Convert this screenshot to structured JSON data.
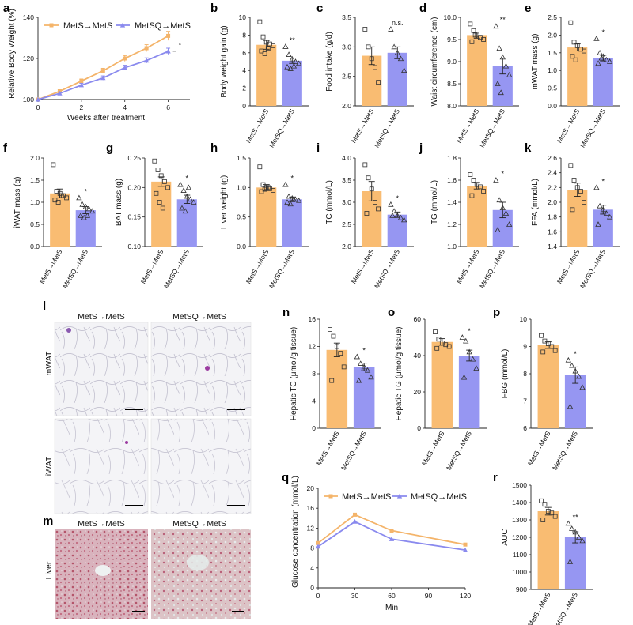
{
  "colors": {
    "orange": "#F9BC72",
    "orange_line": "#F4B46A",
    "purple": "#9696F2",
    "purple_line": "#8A8AEE"
  },
  "panels": {
    "a": "a",
    "b": "b",
    "c": "c",
    "d": "d",
    "e": "e",
    "f": "f",
    "g": "g",
    "h": "h",
    "i": "i",
    "j": "j",
    "k": "k",
    "l": "l",
    "m": "m",
    "n": "n",
    "o": "o",
    "p": "p",
    "q": "q",
    "r": "r"
  },
  "groups": [
    "MetS→MetS",
    "MetSQ→MetS"
  ],
  "histology": {
    "l_titles": [
      "MetS→MetS",
      "MetSQ→MetS"
    ],
    "l_rows": [
      "mWAT",
      "iWAT"
    ],
    "m_titles": [
      "MetS→MetS",
      "MetSQ→MetS"
    ],
    "m_row": "Liver"
  },
  "chart_data": [
    {
      "id": "a",
      "type": "line",
      "xlabel": "Weeks after treatment",
      "ylabel": "Relative Body Weight (%)",
      "xlim": [
        0,
        7
      ],
      "ylim": [
        100,
        140
      ],
      "xticks": [
        0,
        2,
        4,
        6
      ],
      "yticks": [
        100,
        120,
        140
      ],
      "x": [
        0,
        1,
        2,
        3,
        4,
        5,
        6
      ],
      "series": [
        {
          "name": "MetS→MetS",
          "values": [
            100,
            104,
            109,
            114,
            120,
            125,
            131
          ],
          "err": [
            0,
            0.8,
            1,
            1.2,
            1.4,
            1.7,
            2.2
          ]
        },
        {
          "name": "MetSQ→MetS",
          "values": [
            100,
            103,
            107,
            110.5,
            115.5,
            119,
            123.5
          ],
          "err": [
            0,
            0.7,
            0.9,
            1,
            1.2,
            1.3,
            1.5
          ]
        }
      ],
      "annotation": "*",
      "legend": "top"
    },
    {
      "id": "b",
      "type": "bar",
      "ylabel": "Body weight gain (g)",
      "ylim": [
        0,
        10
      ],
      "yticks": [
        0,
        2,
        4,
        6,
        8,
        10
      ],
      "values": [
        6.9,
        5.1
      ],
      "err": [
        0.5,
        0.3
      ],
      "points": [
        [
          9.5,
          7.8,
          7.2,
          7.0,
          6.8,
          6.2,
          5.9,
          6.5
        ],
        [
          6.7,
          5.8,
          5.3,
          5.0,
          4.8,
          4.4,
          4.2,
          4.5
        ]
      ],
      "sig": "**"
    },
    {
      "id": "c",
      "type": "bar",
      "ylabel": "Food intake (g/d)",
      "ylim": [
        2.0,
        3.5
      ],
      "yticks": [
        2.0,
        2.5,
        3.0,
        3.5
      ],
      "values": [
        2.85,
        2.9
      ],
      "err": [
        0.15,
        0.1
      ],
      "points": [
        [
          3.3,
          3.0,
          2.8,
          2.65,
          2.4
        ],
        [
          3.3,
          3.0,
          2.9,
          2.8,
          2.6
        ]
      ],
      "sig": "n.s."
    },
    {
      "id": "d",
      "type": "bar",
      "ylabel": "Waist circumference (cm)",
      "ylim": [
        8.0,
        10.0
      ],
      "yticks": [
        8.0,
        8.5,
        9.0,
        9.5,
        10.0
      ],
      "values": [
        9.6,
        8.9
      ],
      "err": [
        0.07,
        0.18
      ],
      "points": [
        [
          9.85,
          9.7,
          9.6,
          9.55,
          9.5,
          9.45,
          9.6
        ],
        [
          9.8,
          9.3,
          9.1,
          8.9,
          8.7,
          8.5,
          8.3
        ]
      ],
      "sig": "**"
    },
    {
      "id": "e",
      "type": "bar",
      "ylabel": "mWAT mass (g)",
      "ylim": [
        0.0,
        2.5
      ],
      "yticks": [
        0.0,
        0.5,
        1.0,
        1.5,
        2.0,
        2.5
      ],
      "values": [
        1.65,
        1.35
      ],
      "err": [
        0.1,
        0.08
      ],
      "points": [
        [
          2.35,
          1.8,
          1.7,
          1.6,
          1.55,
          1.4,
          1.3
        ],
        [
          1.9,
          1.5,
          1.4,
          1.3,
          1.25,
          1.2,
          1.35
        ]
      ],
      "sig": "*"
    },
    {
      "id": "f",
      "type": "bar",
      "ylabel": "iWAT mass (g)",
      "ylim": [
        0.0,
        2.0
      ],
      "yticks": [
        0.0,
        0.5,
        1.0,
        1.5,
        2.0
      ],
      "values": [
        1.2,
        0.82
      ],
      "err": [
        0.1,
        0.08
      ],
      "points": [
        [
          1.85,
          1.25,
          1.2,
          1.15,
          1.1,
          1.05,
          1.0,
          1.15
        ],
        [
          1.1,
          0.95,
          0.9,
          0.85,
          0.8,
          0.7,
          0.65,
          0.7
        ]
      ],
      "sig": "*"
    },
    {
      "id": "g",
      "type": "bar",
      "ylabel": "BAT mass (g)",
      "ylim": [
        0.1,
        0.25
      ],
      "yticks": [
        0.1,
        0.15,
        0.2,
        0.25
      ],
      "values": [
        0.21,
        0.18
      ],
      "err": [
        0.008,
        0.007
      ],
      "points": [
        [
          0.245,
          0.23,
          0.22,
          0.21,
          0.2,
          0.19,
          0.175,
          0.165
        ],
        [
          0.205,
          0.195,
          0.185,
          0.18,
          0.175,
          0.165,
          0.16,
          0.2
        ]
      ],
      "sig": "*"
    },
    {
      "id": "h",
      "type": "bar",
      "ylabel": "Liver weight (g)",
      "ylim": [
        0.0,
        1.5
      ],
      "yticks": [
        0.0,
        0.5,
        1.0,
        1.5
      ],
      "values": [
        1.0,
        0.8
      ],
      "err": [
        0.05,
        0.04
      ],
      "points": [
        [
          1.35,
          1.05,
          1.0,
          0.98,
          0.95,
          0.93,
          0.97,
          1.0
        ],
        [
          1.05,
          0.85,
          0.82,
          0.8,
          0.78,
          0.75,
          0.72,
          0.8
        ]
      ],
      "sig": "*"
    },
    {
      "id": "i",
      "type": "bar",
      "ylabel": "TC (mmol/L)",
      "ylim": [
        2.0,
        4.0
      ],
      "yticks": [
        2.0,
        2.5,
        3.0,
        3.5,
        4.0
      ],
      "values": [
        3.25,
        2.72
      ],
      "err": [
        0.22,
        0.06
      ],
      "points": [
        [
          3.85,
          3.55,
          3.3,
          3.0,
          2.85,
          2.75
        ],
        [
          2.95,
          2.8,
          2.7,
          2.65,
          2.6,
          2.7
        ]
      ],
      "sig": "*"
    },
    {
      "id": "j",
      "type": "bar",
      "ylabel": "TG (mmol/L)",
      "ylim": [
        1.0,
        1.8
      ],
      "yticks": [
        1.0,
        1.2,
        1.4,
        1.6,
        1.8
      ],
      "values": [
        1.55,
        1.33
      ],
      "err": [
        0.03,
        0.07
      ],
      "points": [
        [
          1.65,
          1.6,
          1.56,
          1.54,
          1.5,
          1.46
        ],
        [
          1.6,
          1.42,
          1.35,
          1.3,
          1.2,
          1.15
        ]
      ],
      "sig": "*"
    },
    {
      "id": "k",
      "type": "bar",
      "ylabel": "FFA (mmol/L)",
      "ylim": [
        1.4,
        2.6
      ],
      "yticks": [
        1.4,
        1.6,
        1.8,
        2.0,
        2.2,
        2.4,
        2.6
      ],
      "values": [
        2.17,
        1.9
      ],
      "err": [
        0.09,
        0.06
      ],
      "points": [
        [
          2.5,
          2.3,
          2.2,
          2.15,
          2.0,
          1.9
        ],
        [
          2.2,
          1.95,
          1.9,
          1.85,
          1.8,
          1.7
        ]
      ],
      "sig": "*"
    },
    {
      "id": "n",
      "type": "bar",
      "ylabel": "Hepatic TC (μmol/g tissue)",
      "ylim": [
        0,
        16
      ],
      "yticks": [
        0,
        4,
        8,
        12,
        16
      ],
      "values": [
        11.5,
        9.0
      ],
      "err": [
        1.0,
        0.55
      ],
      "points": [
        [
          14.5,
          13.5,
          12.0,
          11.0,
          9.0,
          7.0
        ],
        [
          10.5,
          9.5,
          9.0,
          8.5,
          7.5,
          7.0
        ]
      ],
      "sig": "*"
    },
    {
      "id": "o",
      "type": "bar",
      "ylabel": "Hepatic TG (μmol/g tissue)",
      "ylim": [
        0,
        60
      ],
      "yticks": [
        0,
        20,
        40,
        60
      ],
      "values": [
        47.5,
        40.0
      ],
      "err": [
        1.8,
        3.0
      ],
      "points": [
        [
          53,
          49,
          47,
          46,
          45,
          44
        ],
        [
          50,
          48,
          42,
          38,
          33,
          28
        ]
      ],
      "sig": "*"
    },
    {
      "id": "p",
      "type": "bar",
      "ylabel": "FBG (mmol/L)",
      "ylim": [
        6,
        10
      ],
      "yticks": [
        6,
        7,
        8,
        9,
        10
      ],
      "values": [
        9.05,
        7.95
      ],
      "err": [
        0.12,
        0.3
      ],
      "points": [
        [
          9.4,
          9.2,
          9.1,
          9.0,
          8.85,
          8.8
        ],
        [
          8.5,
          8.3,
          8.1,
          7.9,
          7.5,
          6.8
        ]
      ],
      "sig": "*"
    },
    {
      "id": "q",
      "type": "line",
      "xlabel": "Min",
      "ylabel": "Glucose concentration (mmol/L)",
      "xlim": [
        0,
        120
      ],
      "ylim": [
        0,
        20
      ],
      "xticks": [
        0,
        30,
        60,
        90,
        120
      ],
      "yticks": [
        0,
        4,
        8,
        12,
        16,
        20
      ],
      "x": [
        0,
        30,
        60,
        120
      ],
      "series": [
        {
          "name": "MetS→MetS",
          "values": [
            9.0,
            14.7,
            11.5,
            8.7
          ]
        },
        {
          "name": "MetSQ→MetS",
          "values": [
            8.3,
            13.3,
            9.8,
            7.6
          ]
        }
      ],
      "legend": "top"
    },
    {
      "id": "r",
      "type": "bar",
      "ylabel": "AUC",
      "ylim": [
        900,
        1500
      ],
      "yticks": [
        900,
        1000,
        1100,
        1200,
        1300,
        1400,
        1500
      ],
      "values": [
        1350,
        1200
      ],
      "err": [
        22,
        32
      ],
      "points": [
        [
          1410,
          1390,
          1350,
          1340,
          1320,
          1300
        ],
        [
          1280,
          1250,
          1230,
          1200,
          1180,
          1060
        ]
      ],
      "sig": "**"
    }
  ]
}
